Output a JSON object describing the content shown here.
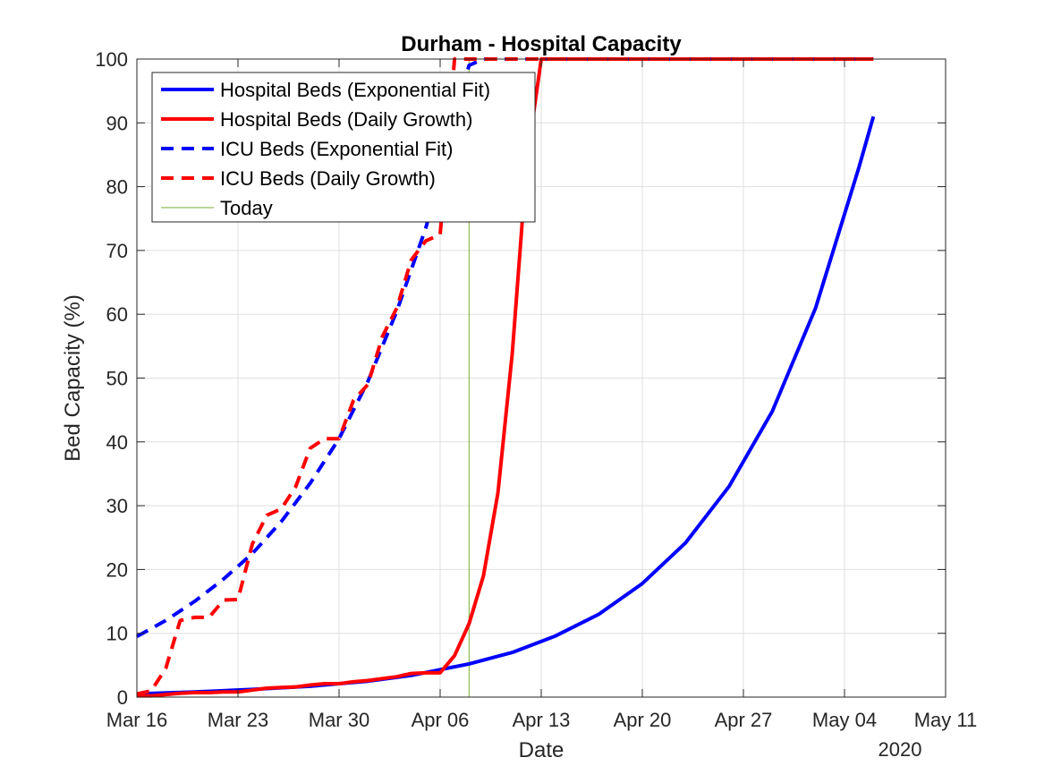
{
  "chart_data": {
    "type": "line",
    "title": "Durham - Hospital Capacity",
    "xlabel": "Date",
    "ylabel": "Bed Capacity (%)",
    "year_label": "2020",
    "xlim": [
      "2020-03-16",
      "2020-05-11"
    ],
    "ylim": [
      0,
      100
    ],
    "x_ticks": [
      "2020-03-16",
      "2020-03-23",
      "2020-03-30",
      "2020-04-06",
      "2020-04-13",
      "2020-04-20",
      "2020-04-27",
      "2020-05-04",
      "2020-05-11"
    ],
    "x_tick_labels": [
      "Mar 16",
      "Mar 23",
      "Mar 30",
      "Apr 06",
      "Apr 13",
      "Apr 20",
      "Apr 27",
      "May 04",
      "May 11"
    ],
    "y_ticks": [
      0,
      10,
      20,
      30,
      40,
      50,
      60,
      70,
      80,
      90,
      100
    ],
    "grid": true,
    "legend_position": "top-left",
    "series": [
      {
        "name": "Hospital Beds (Exponential Fit)",
        "color": "#0000ff",
        "style": "solid",
        "x": [
          "2020-03-16",
          "2020-03-20",
          "2020-03-24",
          "2020-03-28",
          "2020-04-01",
          "2020-04-04",
          "2020-04-08",
          "2020-04-11",
          "2020-04-14",
          "2020-04-17",
          "2020-04-20",
          "2020-04-23",
          "2020-04-26",
          "2020-04-29",
          "2020-05-02",
          "2020-05-05",
          "2020-05-06"
        ],
        "values": [
          0.5,
          0.8,
          1.2,
          1.7,
          2.5,
          3.4,
          5.2,
          7.0,
          9.6,
          13.0,
          17.8,
          24.2,
          33.0,
          44.8,
          61.0,
          83.0,
          91.0
        ]
      },
      {
        "name": "Hospital Beds (Daily Growth)",
        "color": "#ff0000",
        "style": "solid",
        "x": [
          "2020-03-16",
          "2020-03-17",
          "2020-03-18",
          "2020-03-19",
          "2020-03-20",
          "2020-03-21",
          "2020-03-22",
          "2020-03-23",
          "2020-03-24",
          "2020-03-25",
          "2020-03-26",
          "2020-03-27",
          "2020-03-28",
          "2020-03-29",
          "2020-03-30",
          "2020-03-31",
          "2020-04-01",
          "2020-04-02",
          "2020-04-03",
          "2020-04-04",
          "2020-04-05",
          "2020-04-06",
          "2020-04-07",
          "2020-04-08",
          "2020-04-09",
          "2020-04-10",
          "2020-04-11",
          "2020-04-12",
          "2020-04-13",
          "2020-05-06"
        ],
        "values": [
          0.2,
          0.2,
          0.4,
          0.6,
          0.7,
          0.7,
          0.8,
          0.8,
          1.1,
          1.4,
          1.5,
          1.6,
          1.9,
          2.1,
          2.1,
          2.4,
          2.6,
          2.9,
          3.2,
          3.7,
          3.8,
          3.8,
          6.5,
          11.5,
          19.0,
          32.0,
          54.0,
          84.0,
          100,
          100
        ]
      },
      {
        "name": "ICU Beds (Exponential Fit)",
        "color": "#0000ff",
        "style": "dashed",
        "x": [
          "2020-03-16",
          "2020-03-18",
          "2020-03-20",
          "2020-03-22",
          "2020-03-24",
          "2020-03-26",
          "2020-03-28",
          "2020-03-30",
          "2020-04-01",
          "2020-04-03",
          "2020-04-05",
          "2020-04-06",
          "2020-04-07",
          "2020-04-08",
          "2020-04-09",
          "2020-05-06"
        ],
        "values": [
          9.5,
          12.0,
          15.0,
          18.5,
          22.5,
          27.5,
          33.5,
          40.5,
          49.5,
          60.5,
          73.5,
          81.5,
          91.0,
          99.0,
          100,
          100
        ]
      },
      {
        "name": "ICU Beds (Daily Growth)",
        "color": "#ff0000",
        "style": "dashed",
        "x": [
          "2020-03-16",
          "2020-03-17",
          "2020-03-18",
          "2020-03-19",
          "2020-03-20",
          "2020-03-21",
          "2020-03-22",
          "2020-03-23",
          "2020-03-24",
          "2020-03-25",
          "2020-03-26",
          "2020-03-27",
          "2020-03-28",
          "2020-03-29",
          "2020-03-30",
          "2020-03-31",
          "2020-04-01",
          "2020-04-02",
          "2020-04-03",
          "2020-04-04",
          "2020-04-05",
          "2020-04-06",
          "2020-04-07",
          "2020-05-06"
        ],
        "values": [
          0.5,
          1.0,
          4.5,
          12.0,
          12.5,
          12.5,
          15.2,
          15.3,
          24.0,
          28.5,
          29.5,
          33.0,
          39.0,
          40.5,
          40.5,
          46.5,
          49.0,
          56.5,
          61.0,
          68.5,
          71.5,
          72.5,
          100,
          100
        ]
      },
      {
        "name": "Today",
        "color": "#77ac30",
        "style": "thin",
        "x": [
          "2020-04-08",
          "2020-04-08"
        ],
        "values": [
          0,
          100
        ]
      }
    ]
  }
}
